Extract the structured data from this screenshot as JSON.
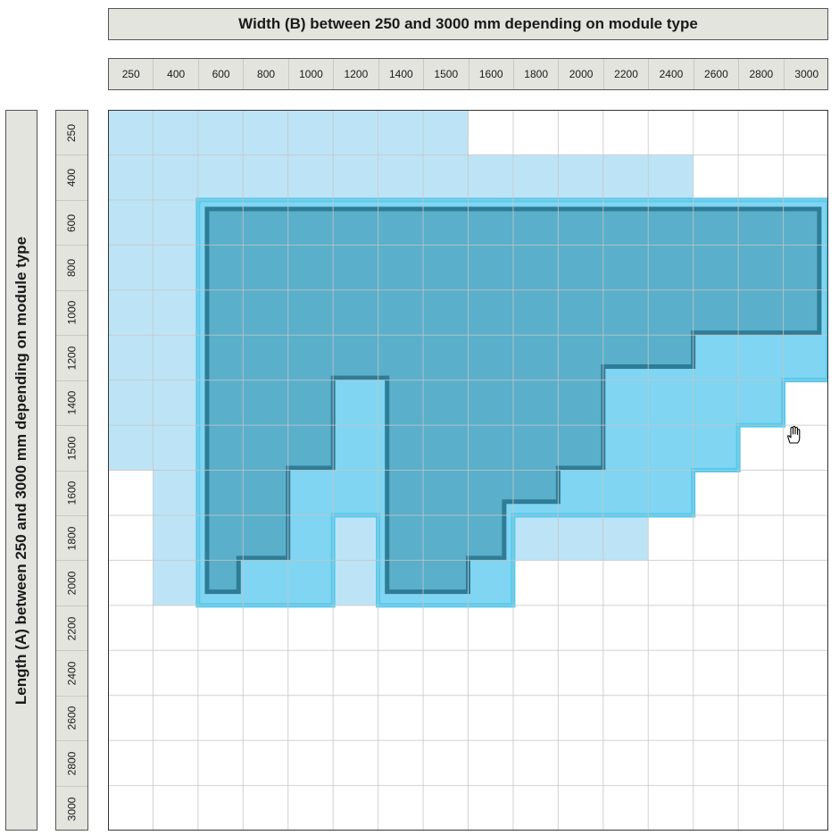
{
  "width_title": "Width (B) between 250 and 3000 mm depending on module type",
  "length_title": "Length (A) between 250 and 3000 mm depending on module type",
  "col_ticks": [
    "250",
    "400",
    "600",
    "800",
    "1000",
    "1200",
    "1400",
    "1500",
    "1600",
    "1800",
    "2000",
    "2200",
    "2400",
    "2600",
    "2800",
    "3000"
  ],
  "row_ticks": [
    "250",
    "400",
    "600",
    "800",
    "1000",
    "1200",
    "1400",
    "1500",
    "1600",
    "1800",
    "2000",
    "2200",
    "2400",
    "2600",
    "2800",
    "3000"
  ],
  "colors": {
    "light_region": "#bde4f6",
    "medium_region": "#7fd5f2",
    "dark_region": "#5aafca",
    "dark_outline": "#2f7c96",
    "medium_outline": "#52cbf0",
    "grid_line": "#c6c6c6",
    "header_bg": "#e4e4df"
  },
  "regions": {
    "light_cells_per_row_max_col": [
      7,
      12,
      15,
      15,
      15,
      15,
      14,
      13,
      12,
      11,
      8,
      -1,
      -1,
      -1,
      -1,
      -1
    ],
    "light_cells_per_row_min_col": [
      0,
      0,
      0,
      0,
      0,
      0,
      0,
      0,
      1,
      1,
      1,
      -1,
      -1,
      -1,
      -1,
      -1
    ]
  }
}
